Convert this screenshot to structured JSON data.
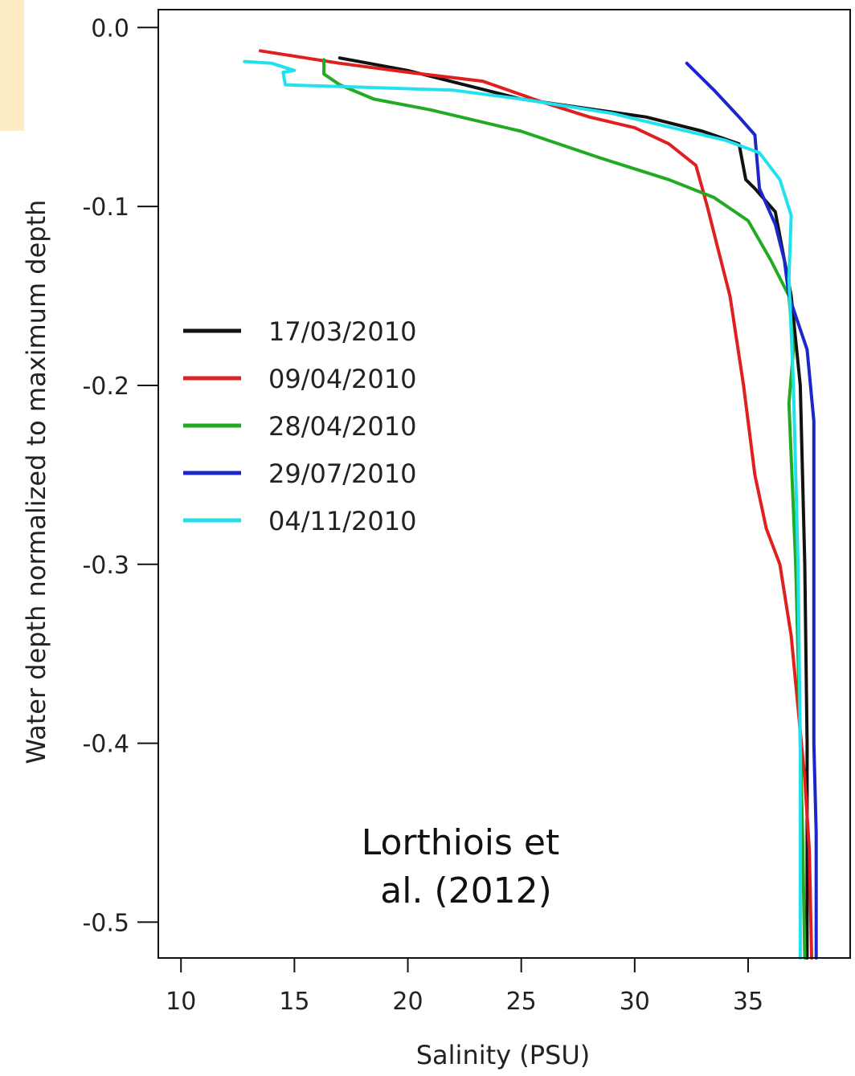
{
  "chart_data": {
    "type": "line",
    "xlabel": "Salinity (PSU)",
    "ylabel": "Water depth normalized to maximum depth",
    "xlim": [
      9,
      39.5
    ],
    "ylim": [
      -0.52,
      0.01
    ],
    "x_ticks": [
      {
        "value": 10,
        "label": "10"
      },
      {
        "value": 15,
        "label": "15"
      },
      {
        "value": 20,
        "label": "20"
      },
      {
        "value": 25,
        "label": "25"
      },
      {
        "value": 30,
        "label": "30"
      },
      {
        "value": 35,
        "label": "35"
      }
    ],
    "y_ticks": [
      {
        "value": 0.0,
        "label": "0.0"
      },
      {
        "value": -0.1,
        "label": "-0.1"
      },
      {
        "value": -0.2,
        "label": "-0.2"
      },
      {
        "value": -0.3,
        "label": "-0.3"
      },
      {
        "value": -0.4,
        "label": "-0.4"
      },
      {
        "value": -0.5,
        "label": "-0.5"
      }
    ],
    "grid": false,
    "legend_position": "left-middle",
    "annotation": [
      "Lorthiois et",
      "al. (2012)"
    ],
    "series": [
      {
        "name": "17/03/2010",
        "color": "#111111",
        "x": [
          17.0,
          20.0,
          25.0,
          30.5,
          33.0,
          34.6,
          34.9,
          35.3,
          36.2,
          36.9,
          37.3,
          37.5,
          37.6,
          37.6
        ],
        "y": [
          -0.017,
          -0.024,
          -0.04,
          -0.05,
          -0.058,
          -0.065,
          -0.085,
          -0.09,
          -0.103,
          -0.15,
          -0.2,
          -0.3,
          -0.4,
          -0.52
        ]
      },
      {
        "name": "09/04/2010",
        "color": "#e02020",
        "x": [
          13.5,
          17.0,
          20.0,
          23.3,
          26.0,
          28.0,
          30.0,
          31.5,
          32.7,
          33.2,
          33.6,
          34.2,
          34.8,
          35.3,
          35.8,
          36.4,
          36.9,
          37.2,
          37.5,
          37.7,
          37.8
        ],
        "y": [
          -0.013,
          -0.02,
          -0.025,
          -0.03,
          -0.042,
          -0.05,
          -0.056,
          -0.065,
          -0.077,
          -0.1,
          -0.12,
          -0.15,
          -0.2,
          -0.25,
          -0.28,
          -0.3,
          -0.34,
          -0.38,
          -0.42,
          -0.46,
          -0.52
        ]
      },
      {
        "name": "28/04/2010",
        "color": "#22aa22",
        "x": [
          16.3,
          16.3,
          17.0,
          18.5,
          21.0,
          25.0,
          28.5,
          31.5,
          33.5,
          35.0,
          36.0,
          36.8,
          37.0,
          36.8,
          37.1,
          37.3,
          37.4,
          37.5
        ],
        "y": [
          -0.018,
          -0.026,
          -0.032,
          -0.04,
          -0.046,
          -0.058,
          -0.073,
          -0.085,
          -0.095,
          -0.108,
          -0.13,
          -0.15,
          -0.18,
          -0.21,
          -0.3,
          -0.4,
          -0.45,
          -0.52
        ]
      },
      {
        "name": "29/07/2010",
        "color": "#1a28c8",
        "x": [
          32.3,
          33.5,
          34.6,
          35.3,
          35.5,
          36.2,
          36.6,
          36.8,
          37.6,
          37.9,
          37.9,
          37.9,
          38.0,
          38.0
        ],
        "y": [
          -0.02,
          -0.035,
          -0.05,
          -0.06,
          -0.09,
          -0.11,
          -0.13,
          -0.15,
          -0.18,
          -0.22,
          -0.3,
          -0.4,
          -0.45,
          -0.52
        ]
      },
      {
        "name": "04/11/2010",
        "color": "#22e0ee",
        "x": [
          12.8,
          14.0,
          15.0,
          14.5,
          14.6,
          17.0,
          22.0,
          25.0,
          29.0,
          32.0,
          34.0,
          35.5,
          36.4,
          36.9,
          36.8,
          37.0,
          37.2,
          37.3,
          37.3
        ],
        "y": [
          -0.019,
          -0.02,
          -0.024,
          -0.025,
          -0.032,
          -0.033,
          -0.035,
          -0.04,
          -0.048,
          -0.057,
          -0.063,
          -0.07,
          -0.085,
          -0.105,
          -0.14,
          -0.2,
          -0.3,
          -0.4,
          -0.52
        ]
      }
    ]
  }
}
